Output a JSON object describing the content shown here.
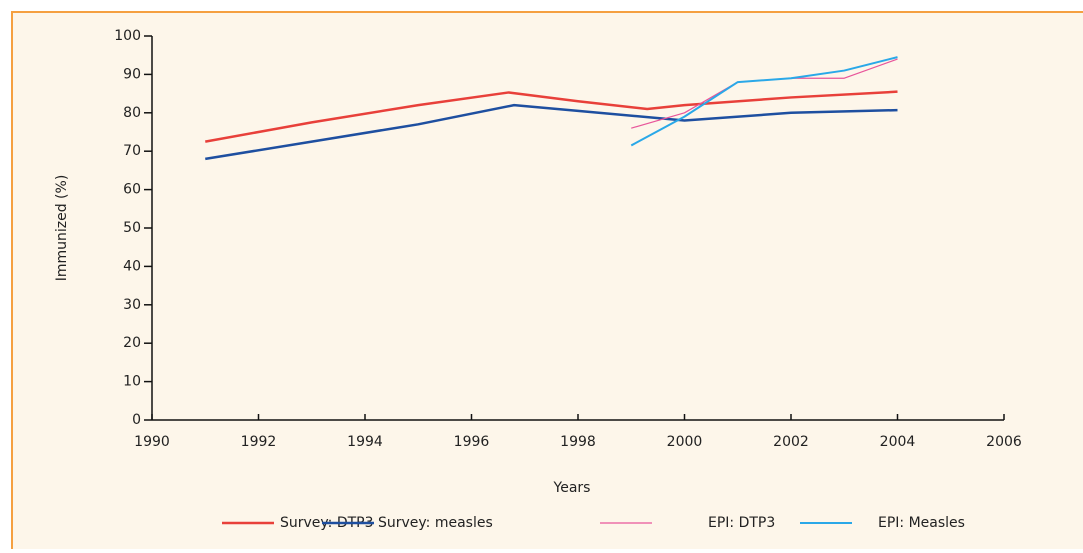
{
  "chart_data": {
    "type": "line",
    "x_label": "Years",
    "y_label": "Immunized (%)",
    "xlim": [
      1990,
      2006
    ],
    "xticks": [
      1990,
      1992,
      1994,
      1996,
      1998,
      2000,
      2002,
      2004,
      2006
    ],
    "ylim": [
      0,
      100
    ],
    "yticks": [
      0,
      10,
      20,
      30,
      40,
      50,
      60,
      70,
      80,
      90,
      100
    ],
    "series": [
      {
        "name": "Survey: DTP3",
        "color": "#e8403a",
        "width": 2.5,
        "x": [
          1991,
          1993,
          1995,
          1996.7,
          1998,
          1999.3,
          2000,
          2002,
          2004
        ],
        "values": [
          72.5,
          77.5,
          82,
          85.3,
          83,
          81,
          82,
          84,
          85.5
        ]
      },
      {
        "name": "Survey: measles",
        "color": "#1e4fa0",
        "width": 2.5,
        "x": [
          1991,
          1993,
          1995,
          1996.8,
          1998,
          2000,
          2002,
          2004
        ],
        "values": [
          68,
          72.5,
          77,
          82,
          80.5,
          78,
          80,
          80.7
        ]
      },
      {
        "name": "EPI: DTP3",
        "color": "#e8559a",
        "width": 1.2,
        "x": [
          1999,
          2000,
          2001,
          2002,
          2003,
          2004
        ],
        "values": [
          76,
          80,
          88,
          89,
          89,
          94
        ]
      },
      {
        "name": "EPI: Measles",
        "color": "#2aa8e8",
        "width": 2,
        "x": [
          1999,
          2000,
          2001,
          2002,
          2003,
          2004
        ],
        "values": [
          71.5,
          79,
          88,
          89,
          91,
          94.5
        ]
      }
    ]
  }
}
